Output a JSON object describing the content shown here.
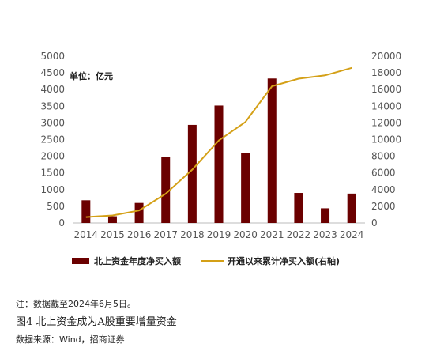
{
  "chart_data": {
    "type": "bar",
    "unit_label": "单位：亿元",
    "categories": [
      "2014",
      "2015",
      "2016",
      "2017",
      "2018",
      "2019",
      "2020",
      "2021",
      "2022",
      "2023",
      "2024"
    ],
    "series": [
      {
        "name": "北上资金年度净买入额",
        "type": "bar",
        "axis": "left",
        "color": "#6b0000",
        "values": [
          680,
          200,
          600,
          1990,
          2940,
          3520,
          2090,
          4330,
          900,
          440,
          880
        ]
      },
      {
        "name": "开通以来累计净买入额(右轴)",
        "type": "line",
        "axis": "right",
        "color": "#d4a017",
        "values": [
          700,
          900,
          1500,
          3500,
          6400,
          9900,
          12100,
          16400,
          17300,
          17700,
          18600
        ]
      }
    ],
    "y_left": {
      "min": 0,
      "max": 5000,
      "ticks": [
        "0",
        "500",
        "1000",
        "1500",
        "2000",
        "2500",
        "3000",
        "3500",
        "4000",
        "4500",
        "5000"
      ]
    },
    "y_right": {
      "min": 0,
      "max": 20000,
      "ticks": [
        "0",
        "2000",
        "4000",
        "6000",
        "8000",
        "10000",
        "12000",
        "14000",
        "16000",
        "18000",
        "20000"
      ]
    },
    "grid": false,
    "legend_position": "bottom"
  },
  "note": "注：数据截至2024年6月5日。",
  "caption": "图4  北上资金成为A股重要增量资金",
  "source": "数据来源：Wind，招商证券"
}
